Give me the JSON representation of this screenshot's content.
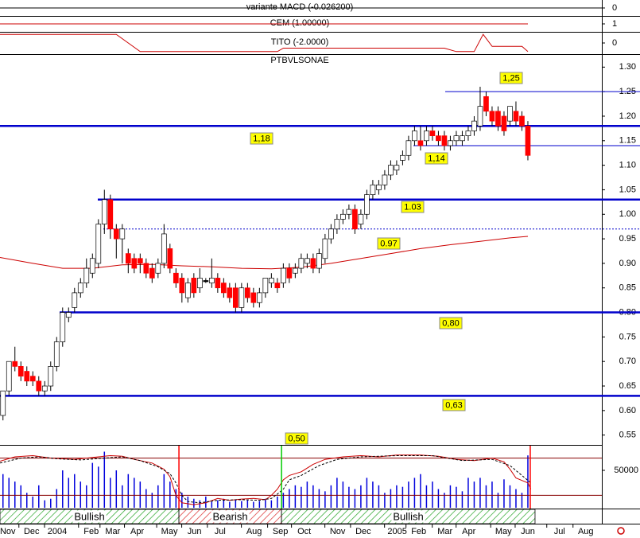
{
  "chart_data": [
    {
      "type": "line",
      "title": "variante MACD (-0.026200)",
      "x": [
        -0.5,
        100.4
      ],
      "series": [
        {
          "color": "#000000",
          "values": [
            0,
            0
          ]
        }
      ],
      "ylim": [
        -1,
        1
      ],
      "yticks": [
        0
      ]
    },
    {
      "type": "line",
      "title": "CEM (1.00000)",
      "x": [
        -0.5,
        88
      ],
      "series": [
        {
          "color": "#cc0000",
          "values": [
            1,
            1
          ]
        }
      ],
      "ylim": [
        0,
        2
      ],
      "yticks": [
        1
      ]
    },
    {
      "type": "line",
      "title": "TITO (-2.0000)",
      "x": [
        -0.5,
        19,
        22,
        23,
        46,
        47,
        74,
        76,
        79,
        80.5,
        82,
        87,
        88
      ],
      "series": [
        {
          "color": "#cc0000",
          "values": [
            1,
            1,
            -0.5,
            -1,
            -1,
            -0.6,
            -0.6,
            -1,
            -1,
            1,
            -0.4,
            -0.4,
            -1
          ]
        }
      ],
      "ylim": [
        -1.2,
        1.2
      ],
      "yticks": [
        0
      ]
    },
    {
      "type": "candlestick",
      "title": "PTBVLSONAE",
      "xlim": [
        -0.5,
        100.4
      ],
      "ylim": [
        0.53,
        1.32
      ],
      "up_color": "#ffffff",
      "down_color": "#ff0000",
      "doji_color": "#000000",
      "open": [
        0.59,
        0.64,
        0.7,
        0.69,
        0.68,
        0.67,
        0.66,
        0.64,
        0.65,
        0.69,
        0.74,
        0.79,
        0.81,
        0.84,
        0.86,
        0.88,
        0.9,
        0.98,
        1.03,
        0.97,
        0.95,
        0.92,
        0.91,
        0.91,
        0.9,
        0.89,
        0.88,
        0.9,
        0.93,
        0.88,
        0.87,
        0.83,
        0.87,
        0.85,
        0.865,
        0.86,
        0.87,
        0.86,
        0.85,
        0.85,
        0.81,
        0.85,
        0.84,
        0.82,
        0.84,
        0.86,
        0.86,
        0.86,
        0.89,
        0.88,
        0.89,
        0.9,
        0.91,
        0.89,
        0.91,
        0.95,
        0.97,
        0.99,
        1.0,
        1.01,
        0.98,
        1.0,
        1.04,
        1.05,
        1.06,
        1.08,
        1.09,
        1.11,
        1.12,
        1.15,
        1.15,
        1.15,
        1.17,
        1.16,
        1.16,
        1.14,
        1.15,
        1.15,
        1.16,
        1.17,
        1.18,
        1.24,
        1.21,
        1.21,
        1.2,
        1.19,
        1.21,
        1.2,
        1.18
      ],
      "high": [
        0.64,
        0.7,
        0.73,
        0.7,
        0.69,
        0.68,
        0.67,
        0.66,
        0.7,
        0.75,
        0.81,
        0.81,
        0.85,
        0.87,
        0.91,
        0.92,
        0.99,
        1.05,
        1.04,
        0.98,
        0.98,
        0.93,
        0.92,
        0.92,
        0.91,
        0.9,
        0.91,
        0.98,
        0.94,
        0.89,
        0.88,
        0.87,
        0.88,
        0.89,
        0.87,
        0.91,
        0.88,
        0.87,
        0.86,
        0.86,
        0.86,
        0.86,
        0.85,
        0.85,
        0.87,
        0.88,
        0.87,
        0.9,
        0.9,
        0.9,
        0.92,
        0.92,
        0.92,
        0.93,
        0.96,
        0.98,
        1.0,
        1.01,
        1.02,
        1.02,
        1.01,
        1.05,
        1.07,
        1.07,
        1.09,
        1.11,
        1.11,
        1.13,
        1.16,
        1.18,
        1.18,
        1.18,
        1.18,
        1.17,
        1.17,
        1.16,
        1.17,
        1.17,
        1.18,
        1.2,
        1.26,
        1.25,
        1.22,
        1.22,
        1.21,
        1.22,
        1.23,
        1.21,
        1.19
      ],
      "low": [
        0.58,
        0.63,
        0.68,
        0.66,
        0.65,
        0.65,
        0.63,
        0.63,
        0.64,
        0.68,
        0.73,
        0.78,
        0.8,
        0.83,
        0.85,
        0.87,
        0.89,
        0.96,
        0.95,
        0.91,
        0.9,
        0.88,
        0.88,
        0.88,
        0.87,
        0.86,
        0.87,
        0.89,
        0.88,
        0.85,
        0.82,
        0.82,
        0.83,
        0.84,
        0.86,
        0.85,
        0.84,
        0.83,
        0.82,
        0.8,
        0.8,
        0.82,
        0.81,
        0.81,
        0.83,
        0.85,
        0.84,
        0.85,
        0.86,
        0.87,
        0.88,
        0.89,
        0.88,
        0.88,
        0.9,
        0.94,
        0.96,
        0.98,
        0.99,
        0.96,
        0.97,
        0.99,
        1.03,
        1.04,
        1.05,
        1.07,
        1.08,
        1.1,
        1.11,
        1.14,
        1.13,
        1.14,
        1.15,
        1.14,
        1.13,
        1.13,
        1.14,
        1.14,
        1.15,
        1.16,
        1.17,
        1.2,
        1.18,
        1.17,
        1.16,
        1.18,
        1.18,
        1.17,
        1.11
      ],
      "close": [
        0.64,
        0.7,
        0.69,
        0.67,
        0.66,
        0.66,
        0.64,
        0.65,
        0.69,
        0.74,
        0.8,
        0.8,
        0.84,
        0.86,
        0.89,
        0.91,
        0.98,
        1.03,
        0.97,
        0.95,
        0.97,
        0.9,
        0.89,
        0.9,
        0.88,
        0.87,
        0.9,
        0.96,
        0.89,
        0.86,
        0.84,
        0.86,
        0.84,
        0.87,
        0.865,
        0.87,
        0.85,
        0.84,
        0.83,
        0.81,
        0.85,
        0.83,
        0.82,
        0.84,
        0.87,
        0.87,
        0.85,
        0.89,
        0.87,
        0.89,
        0.91,
        0.91,
        0.89,
        0.92,
        0.95,
        0.97,
        0.99,
        1.0,
        1.01,
        0.97,
        1.0,
        1.04,
        1.06,
        1.06,
        1.08,
        1.1,
        1.1,
        1.12,
        1.15,
        1.17,
        1.14,
        1.17,
        1.16,
        1.15,
        1.14,
        1.15,
        1.16,
        1.16,
        1.17,
        1.19,
        1.22,
        1.21,
        1.19,
        1.18,
        1.17,
        1.22,
        1.19,
        1.18,
        1.12
      ],
      "yticks": [
        {
          "value": 0.55,
          "label": "0.55"
        },
        {
          "value": 0.6,
          "label": "0.60"
        },
        {
          "value": 0.65,
          "label": "0.65"
        },
        {
          "value": 0.7,
          "label": "0.70"
        },
        {
          "value": 0.75,
          "label": "0.75"
        },
        {
          "value": 0.8,
          "label": "0.80"
        },
        {
          "value": 0.85,
          "label": "0.85"
        },
        {
          "value": 0.9,
          "label": "0.90"
        },
        {
          "value": 0.95,
          "label": "0.95"
        },
        {
          "value": 1.0,
          "label": "1.00"
        },
        {
          "value": 1.05,
          "label": "1.05"
        },
        {
          "value": 1.1,
          "label": "1.10"
        },
        {
          "value": 1.15,
          "label": "1.15"
        },
        {
          "value": 1.2,
          "label": "1.20"
        },
        {
          "value": 1.25,
          "label": "1.25"
        },
        {
          "value": 1.3,
          "label": "1.30"
        }
      ],
      "levels": [
        {
          "value": 1.25,
          "label": "1,25",
          "style": "thin"
        },
        {
          "value": 1.18,
          "label": "1,18",
          "style": "thick"
        },
        {
          "value": 1.14,
          "label": "1,14",
          "style": "thin"
        },
        {
          "value": 1.03,
          "label": "1.03",
          "style": "thick"
        },
        {
          "value": 0.97,
          "label": "0.97",
          "style": "dotted"
        },
        {
          "value": 0.8,
          "label": "0,80",
          "style": "thick"
        },
        {
          "value": 0.63,
          "label": "0,63",
          "style": "thick"
        }
      ],
      "level_color": "#0000cc",
      "moving_average": {
        "color": "#cc0000",
        "x": [
          -0.5,
          5,
          10,
          15,
          20,
          25,
          30,
          35,
          40,
          45,
          50,
          55,
          60,
          65,
          70,
          75,
          80,
          85,
          88
        ],
        "values": [
          0.912,
          0.9,
          0.89,
          0.89,
          0.897,
          0.898,
          0.895,
          0.893,
          0.89,
          0.889,
          0.892,
          0.9,
          0.91,
          0.92,
          0.93,
          0.938,
          0.945,
          0.952,
          0.955
        ]
      }
    },
    {
      "type": "bar",
      "color": "#0000dd",
      "xlim": [
        -0.5,
        100.4
      ],
      "ylim": [
        0,
        83000
      ],
      "yticks": [
        50000
      ],
      "values": [
        45000,
        40000,
        35000,
        30000,
        20000,
        15000,
        30000,
        10000,
        12000,
        25000,
        50000,
        40000,
        45000,
        35000,
        30000,
        60000,
        55000,
        75000,
        40000,
        50000,
        30000,
        45000,
        40000,
        35000,
        25000,
        20000,
        30000,
        45000,
        35000,
        25000,
        20000,
        15000,
        12000,
        10000,
        15000,
        8000,
        10000,
        12000,
        8000,
        10000,
        9000,
        10000,
        8000,
        9000,
        12000,
        10000,
        15000,
        20000,
        25000,
        30000,
        28000,
        35000,
        30000,
        25000,
        22000,
        30000,
        40000,
        35000,
        28000,
        25000,
        30000,
        40000,
        35000,
        30000,
        20000,
        25000,
        30000,
        28000,
        35000,
        40000,
        45000,
        30000,
        35000,
        25000,
        20000,
        30000,
        28000,
        22000,
        40000,
        35000,
        40000,
        30000,
        35000,
        20000,
        38000,
        30000,
        25000,
        20000,
        70000
      ],
      "oscillator_ylim": [
        0,
        100
      ],
      "oscillator_bands": [
        20,
        80
      ],
      "oscillator": [
        {
          "color": "#cc0000",
          "dashed": false,
          "x": [
            -0.5,
            2,
            5,
            8,
            12,
            16,
            18,
            20,
            22,
            25,
            27,
            28,
            29,
            30,
            32,
            34,
            36,
            38,
            40,
            42,
            44,
            45,
            46,
            47,
            48,
            50,
            52,
            54,
            57,
            60,
            63,
            66,
            70,
            73,
            76,
            79,
            82,
            84,
            85,
            86,
            87,
            88,
            88.5
          ],
          "values": [
            75,
            82,
            84,
            80,
            78,
            82,
            84,
            83,
            78,
            72,
            62,
            50,
            20,
            8,
            5,
            8,
            15,
            12,
            14,
            15,
            13,
            20,
            30,
            45,
            52,
            58,
            70,
            78,
            82,
            84,
            82,
            85,
            85,
            83,
            78,
            76,
            80,
            74,
            62,
            48,
            44,
            40,
            30
          ]
        },
        {
          "color": "#000000",
          "dashed": true,
          "x": [
            -0.5,
            3,
            6,
            9,
            13,
            17,
            20,
            23,
            26,
            28,
            29,
            30,
            31,
            33,
            36,
            40,
            43,
            45,
            46,
            47,
            48,
            50,
            53,
            56,
            60,
            66,
            72,
            77,
            82,
            85,
            87,
            88.5
          ],
          "values": [
            72,
            80,
            82,
            79,
            77,
            80,
            82,
            76,
            66,
            55,
            40,
            20,
            10,
            8,
            12,
            13,
            12,
            15,
            22,
            30,
            45,
            52,
            68,
            78,
            82,
            84,
            84,
            76,
            78,
            68,
            52,
            40
          ]
        }
      ],
      "signals": [
        {
          "x": 29.5,
          "color": "#ff0000"
        },
        {
          "x": 46.7,
          "color": "#00cc00"
        },
        {
          "x": 88.4,
          "color": "#ff0000"
        }
      ],
      "signal_label": "0,50",
      "regimes": [
        {
          "label": "Bullish",
          "start": -0.5,
          "end": 29.5
        },
        {
          "label": "Bearish",
          "start": 29.5,
          "end": 46.7
        },
        {
          "label": "Bullish",
          "start": 46.7,
          "end": 89.2
        }
      ],
      "xticks": [
        {
          "value": 0.8,
          "label": "Nov"
        },
        {
          "value": 4.8,
          "label": "Dec"
        },
        {
          "value": 9.1,
          "label": "2004"
        },
        {
          "value": 14.8,
          "label": "Feb"
        },
        {
          "value": 18.4,
          "label": "Mar"
        },
        {
          "value": 22.5,
          "label": "Apr"
        },
        {
          "value": 27.9,
          "label": "May"
        },
        {
          "value": 32.1,
          "label": "Jun"
        },
        {
          "value": 36.4,
          "label": "Jul"
        },
        {
          "value": 42.1,
          "label": "Aug"
        },
        {
          "value": 46.5,
          "label": "Sep"
        },
        {
          "value": 50.5,
          "label": "Oct"
        },
        {
          "value": 56.1,
          "label": "Nov"
        },
        {
          "value": 60.4,
          "label": "Dec"
        },
        {
          "value": 66.1,
          "label": "2005"
        },
        {
          "value": 69.7,
          "label": "Feb"
        },
        {
          "value": 74.1,
          "label": "Mar"
        },
        {
          "value": 78.1,
          "label": "Apr"
        },
        {
          "value": 83.9,
          "label": "May"
        },
        {
          "value": 88.0,
          "label": "Jun"
        },
        {
          "value": 93.3,
          "label": "Jul"
        },
        {
          "value": 97.7,
          "label": "Aug"
        }
      ]
    }
  ]
}
